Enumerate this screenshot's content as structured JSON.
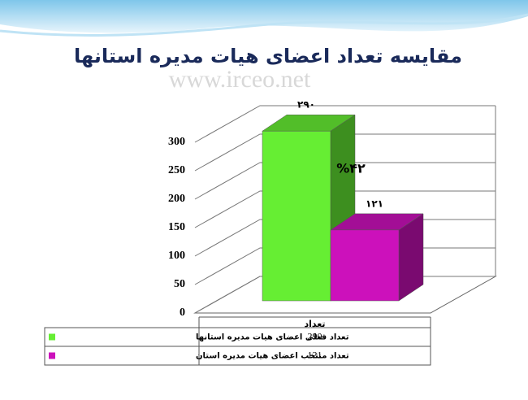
{
  "chart_data": {
    "type": "bar3d",
    "title": "مقایسه تعداد اعضای هیات مدیره استانها",
    "watermark": "www.irceo.net",
    "annotation": "%۴۲",
    "categories": [
      "تعداد"
    ],
    "series": [
      {
        "name": "تعداد فعلی اعضای هیات مدیره استانها",
        "color": "#66ee33",
        "values": [
          290
        ],
        "value_labels": [
          "۲۹۰"
        ]
      },
      {
        "name": "تعداد منتخب اعضای هیات مدیره استان",
        "color": "#cc11bb",
        "values": [
          121
        ],
        "value_labels": [
          "۱۲۱"
        ]
      }
    ],
    "ylim": [
      0,
      300
    ],
    "yticks": [
      0,
      50,
      100,
      150,
      200,
      250,
      300
    ],
    "grid": true
  }
}
